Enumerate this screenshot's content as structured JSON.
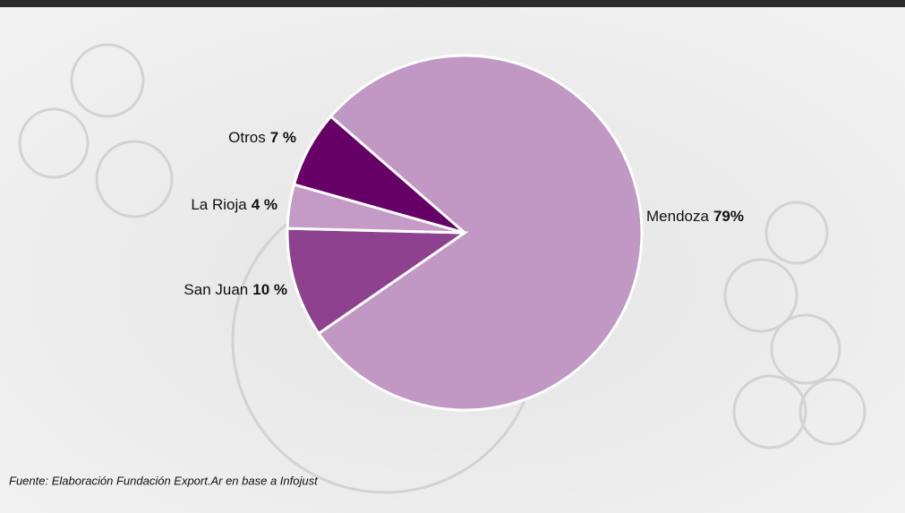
{
  "chart_data": {
    "type": "pie",
    "categories": [
      "Mendoza",
      "San Juan",
      "La Rioja",
      "Otros"
    ],
    "values": [
      79,
      10,
      4,
      7
    ],
    "value_labels": [
      "79%",
      "10 %",
      "4 %",
      "7 %"
    ],
    "colors": [
      "#c197c4",
      "#8d418f",
      "#c39bc6",
      "#660066"
    ],
    "source": "Fuente: Elaboración Fundación Export.Ar en base a Infojust"
  }
}
